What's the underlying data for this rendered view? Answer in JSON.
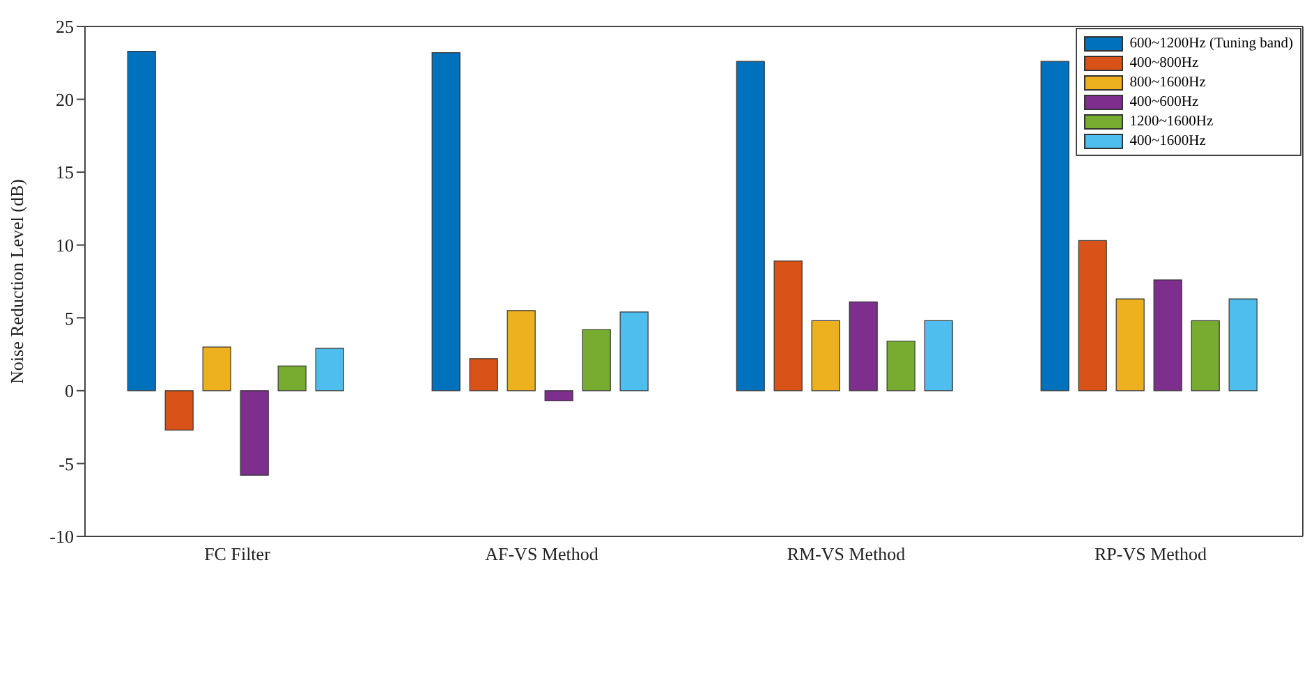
{
  "chart_data": {
    "type": "bar",
    "ylabel": "Noise Reduction Level (dB)",
    "categories": [
      "FC Filter",
      "AF-VS Method",
      "RM-VS Method",
      "RP-VS Method"
    ],
    "series": [
      {
        "name": "600~1200Hz (Tuning band)",
        "color": "#0072bd",
        "values": [
          23.3,
          23.2,
          22.6,
          22.6
        ]
      },
      {
        "name": "400~800Hz",
        "color": "#d95319",
        "values": [
          -2.7,
          2.2,
          8.9,
          10.3
        ]
      },
      {
        "name": "800~1600Hz",
        "color": "#edb120",
        "values": [
          3.0,
          5.5,
          4.8,
          6.3
        ]
      },
      {
        "name": "400~600Hz",
        "color": "#7e2f8e",
        "values": [
          -5.8,
          -0.7,
          6.1,
          7.6
        ]
      },
      {
        "name": "1200~1600Hz",
        "color": "#77ac30",
        "values": [
          1.7,
          4.2,
          3.4,
          4.8
        ]
      },
      {
        "name": "400~1600Hz",
        "color": "#4dbeee",
        "values": [
          2.9,
          5.4,
          4.8,
          6.3
        ]
      }
    ],
    "ylim": [
      -10,
      25
    ],
    "yticks": [
      -10,
      -5,
      0,
      5,
      10,
      15,
      20,
      25
    ],
    "grid": false,
    "legend": "top right"
  }
}
